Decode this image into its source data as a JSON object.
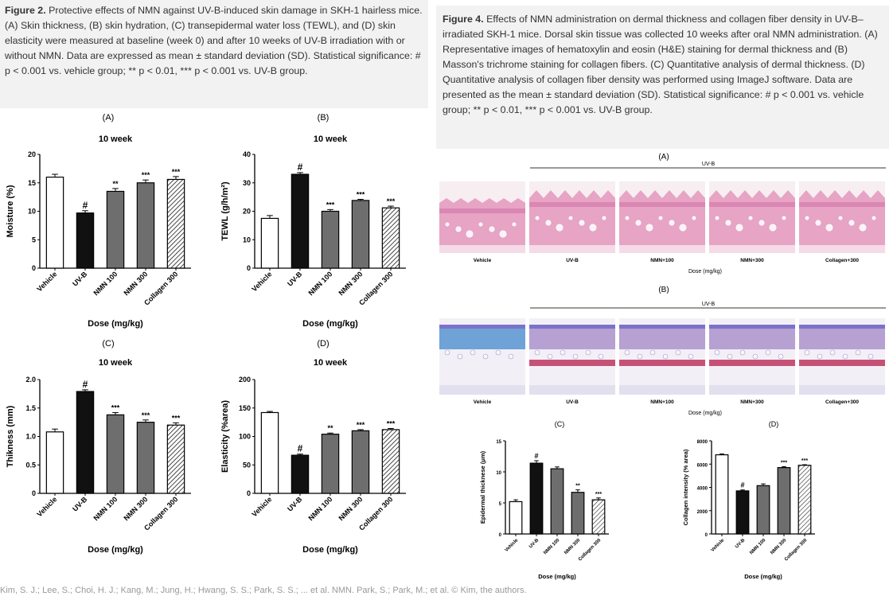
{
  "figure2": {
    "caption_label": "Figure 2.",
    "caption_text": " Protective effects of NMN against UV-B-induced skin damage in SKH-1 hairless mice. (A) Skin thickness, (B) skin hydration, (C) transepidermal water loss (TEWL), and (D) skin elasticity were measured at baseline (week 0) and after 10 weeks of UV-B irradiation with or without NMN. Data are expressed as mean ± standard deviation (SD). Statistical significance: # p < 0.001 vs. vehicle group; ** p < 0.01, *** p < 0.001 vs. UV-B group."
  },
  "figure4": {
    "caption_label": "Figure 4.",
    "caption_text": " Effects of NMN administration on dermal thickness and collagen fiber density in UV-B–irradiated SKH-1 mice. Dorsal skin tissue was collected 10 weeks after oral NMN administration. (A) Representative images of hematoxylin and eosin (H&E) staining for dermal thickness and (B) Masson's trichrome staining for collagen fibers. (C) Quantitative analysis of dermal thickness. (D) Quantitative analysis of collagen fiber density was performed using ImageJ software. Data are presented as the mean ± standard deviation (SD). Statistical significance: # p < 0.001 vs. vehicle group; ** p < 0.01, *** p < 0.001 vs. UV-B group.",
    "histo_A": {
      "letter": "(A)",
      "uvb_label": "UV-B",
      "labels": [
        "Vehicle",
        "UV-B",
        "NMN+100",
        "NMN+300",
        "Collagen+300"
      ],
      "dose_label": "Dose (mg/kg)"
    },
    "histo_B": {
      "letter": "(B)",
      "uvb_label": "UV-B",
      "labels": [
        "Vehicle",
        "UV-B",
        "NMN+100",
        "NMN+300",
        "Collagen+300"
      ],
      "dose_label": "Dose (mg/kg)"
    }
  },
  "footer": "Kim, S. J.; Lee, S.; Choi, H. J.; Kang, M.; Jung, H.; Hwang, S. S.; Park, S. S.; ... et al. NMN. Park, S.; Park, M.; et al. © Kim, the authors.",
  "chart_data": [
    {
      "id": "fig2A",
      "type": "bar",
      "panel_label": "(A)",
      "title": "10 week",
      "ylabel": "Moisture (%)",
      "xlabel": "Dose (mg/kg)",
      "categories": [
        "Vehicle",
        "UV-B",
        "NMN 100",
        "NMN 300",
        "Collagen 300"
      ],
      "values": [
        16.0,
        9.7,
        13.5,
        15.0,
        15.6
      ],
      "errors": [
        0.5,
        0.4,
        0.5,
        0.5,
        0.5
      ],
      "significance": [
        "",
        "#",
        "**",
        "***",
        "***"
      ],
      "ylim": [
        0,
        20
      ],
      "yticks": [
        0,
        5,
        10,
        15,
        20
      ]
    },
    {
      "id": "fig2B",
      "type": "bar",
      "panel_label": "(B)",
      "title": "10 week",
      "ylabel": "TEWL (g/h/m²)",
      "xlabel": "Dose (mg/kg)",
      "categories": [
        "Vehicle",
        "UV-B",
        "NMN 100",
        "NMN 300",
        "Collagen 300"
      ],
      "values": [
        17.5,
        33.0,
        20.0,
        23.8,
        21.2
      ],
      "errors": [
        1.0,
        0.6,
        0.6,
        0.4,
        0.6
      ],
      "significance": [
        "",
        "#",
        "***",
        "***",
        "***"
      ],
      "ylim": [
        0,
        40
      ],
      "yticks": [
        0,
        10,
        20,
        30,
        40
      ]
    },
    {
      "id": "fig2C",
      "type": "bar",
      "panel_label": "(C)",
      "title": "10 week",
      "ylabel": "Thikness (mm)",
      "xlabel": "Dose (mg/kg)",
      "categories": [
        "Vehicle",
        "UV-B",
        "NMN 100",
        "NMN 300",
        "Collagen 300"
      ],
      "values": [
        1.08,
        1.79,
        1.38,
        1.25,
        1.2
      ],
      "errors": [
        0.05,
        0.03,
        0.04,
        0.04,
        0.04
      ],
      "significance": [
        "",
        "#",
        "***",
        "***",
        "***"
      ],
      "ylim": [
        0,
        2.0
      ],
      "yticks": [
        "0",
        "0.5",
        "1.0",
        "1.5",
        "2.0"
      ]
    },
    {
      "id": "fig2D",
      "type": "bar",
      "panel_label": "(D)",
      "title": "10 week",
      "ylabel": "Elasticity (%area)",
      "xlabel": "Dose (mg/kg)",
      "categories": [
        "Vehicle",
        "UV-B",
        "NMN 100",
        "NMN 300",
        "Collagen 300"
      ],
      "values": [
        142,
        67,
        104,
        110,
        112
      ],
      "errors": [
        2,
        2,
        2,
        2,
        2
      ],
      "significance": [
        "",
        "#",
        "**",
        "***",
        "***"
      ],
      "ylim": [
        0,
        200
      ],
      "yticks": [
        0,
        50,
        100,
        150,
        200
      ]
    },
    {
      "id": "fig4C",
      "type": "bar",
      "panel_label": "(C)",
      "title": "",
      "ylabel": "Epidermal thicknese (μm)",
      "xlabel": "Dose (mg/kg)",
      "categories": [
        "Vehicle",
        "UV-B",
        "NMN 100",
        "NMN 300",
        "Collagen 300"
      ],
      "values": [
        5.2,
        11.4,
        10.5,
        6.7,
        5.5
      ],
      "errors": [
        0.3,
        0.4,
        0.3,
        0.4,
        0.3
      ],
      "significance": [
        "",
        "#",
        "",
        "**",
        "***"
      ],
      "ylim": [
        0,
        15
      ],
      "yticks": [
        0,
        5,
        10,
        15
      ]
    },
    {
      "id": "fig4D",
      "type": "bar",
      "panel_label": "(D)",
      "title": "",
      "ylabel": "Collagen intensity (% area)",
      "xlabel": "Dose (mg/kg)",
      "categories": [
        "Vehicle",
        "UV-B",
        "NMN 100",
        "NMN 300",
        "Collagen 300"
      ],
      "values": [
        6800,
        3700,
        4150,
        5700,
        5900
      ],
      "errors": [
        80,
        80,
        150,
        80,
        50
      ],
      "significance": [
        "",
        "#",
        "",
        "***",
        "***"
      ],
      "ylim": [
        0,
        8000
      ],
      "yticks": [
        0,
        2000,
        4000,
        6000,
        8000
      ]
    }
  ]
}
